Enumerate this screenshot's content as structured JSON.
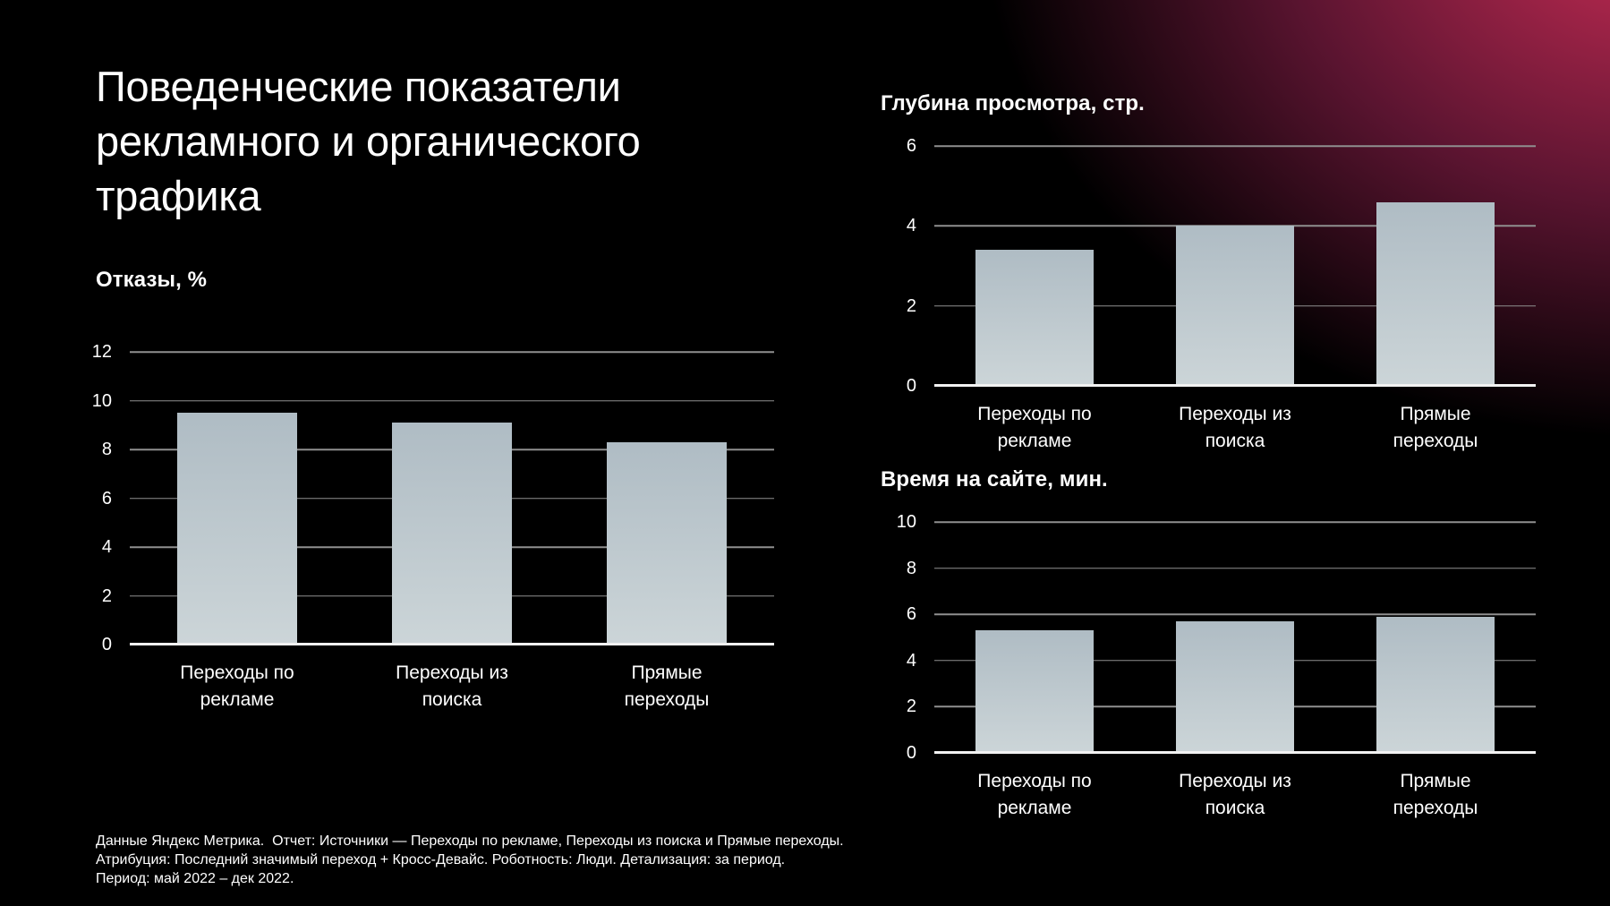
{
  "slide": {
    "title_lines": [
      "Поведенческие показатели",
      "рекламного и органического",
      "трафика"
    ],
    "background_color": "#000000",
    "glow": {
      "inner_color": "#cc2d56",
      "mid_color": "#5a1430"
    },
    "bar_gradient_top": "#afbcc4",
    "bar_gradient_bottom": "#ccd5d8",
    "gridline_color": "#8f8f8f",
    "baseline_color": "#f2f2f2",
    "text_color": "#ffffff"
  },
  "chart_data": [
    {
      "id": "bounces",
      "type": "bar",
      "title": "Отказы, %",
      "categories": [
        "Переходы по рекламе",
        "Переходы из поиска",
        "Прямые переходы"
      ],
      "values": [
        9.5,
        9.1,
        8.3
      ],
      "xlabel": "",
      "ylabel": "Отказы, %",
      "ylim": [
        0,
        12
      ],
      "ytick_step": 2,
      "grid": true,
      "legend": false,
      "bar_width_pct": 18.5
    },
    {
      "id": "depth",
      "type": "bar",
      "title": "Глубина просмотра, стр.",
      "categories": [
        "Переходы по рекламе",
        "Переходы из поиска",
        "Прямые переходы"
      ],
      "values": [
        3.4,
        4.0,
        4.6
      ],
      "xlabel": "",
      "ylabel": "Глубина просмотра, стр.",
      "ylim": [
        0,
        6
      ],
      "ytick_step": 2,
      "grid": true,
      "legend": false,
      "bar_width_pct": 19.5
    },
    {
      "id": "time",
      "type": "bar",
      "title": "Время на сайте, мин.",
      "categories": [
        "Переходы по рекламе",
        "Переходы из поиска",
        "Прямые переходы"
      ],
      "values": [
        5.3,
        5.7,
        5.9
      ],
      "xlabel": "",
      "ylabel": "Время на сайте, мин.",
      "ylim": [
        0,
        10
      ],
      "ytick_step": 2,
      "grid": true,
      "legend": false,
      "bar_width_pct": 19.5
    }
  ],
  "footer": {
    "lines": [
      "Данные Яндекс Метрика.  Отчет: Источники — Переходы по рекламе, Переходы из поиска и Прямые переходы.",
      "Атрибуция: Последний значимый переход + Кросс-Девайс. Роботность: Люди. Детализация: за период.",
      "Период: май 2022 – дек 2022."
    ]
  }
}
